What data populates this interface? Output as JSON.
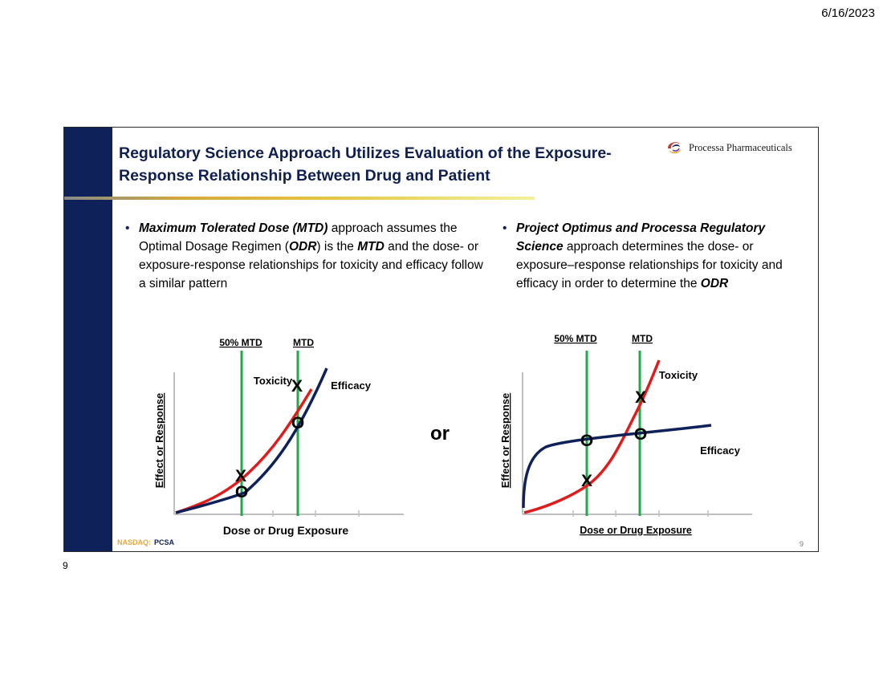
{
  "print": {
    "date": "6/16/2023",
    "page_number": "9"
  },
  "slide": {
    "title_line1": "Regulatory Science Approach Utilizes Evaluation of the Exposure-",
    "title_line2": "Response Relationship Between Drug and Patient",
    "logo_text": "Processa Pharmaceuticals",
    "bullet_left": {
      "t1": "Maximum Tolerated Dose (MTD)",
      "t2": " approach assumes the Optimal Dosage Regimen (",
      "t3": "ODR",
      "t4": ") is the ",
      "t5": "MTD",
      "t6": " and the dose- or exposure-response relationships for toxicity and efficacy follow a similar pattern"
    },
    "bullet_right": {
      "t1": "Project Optimus and Processa Regulatory Science",
      "t2": " approach determines the dose- or exposure–response relationships for toxicity and efficacy in order to determine the ",
      "t3": "ODR"
    },
    "or_text": "or",
    "footer_nasdaq": "NASDAQ:",
    "footer_ticker": "PCSA",
    "slide_number": "9"
  },
  "colors": {
    "navy": "#0f2159",
    "toxicity_red": "#e01b1b",
    "efficacy_navy": "#0f2159",
    "mtd_green": "#21a84a",
    "nasdaq_gold": "#e8a93a"
  },
  "chart_data": [
    {
      "type": "line",
      "xlabel": "Dose or Drug Exposure",
      "ylabel": "Effect or Response",
      "vertical_lines": [
        "50% MTD",
        "MTD"
      ],
      "series": [
        {
          "name": "Toxicity",
          "label": "Toxicity"
        },
        {
          "name": "Efficacy",
          "label": "Efficacy"
        }
      ],
      "markers": [
        {
          "symbol": "X",
          "at": "Toxicity at 50% MTD"
        },
        {
          "symbol": "O",
          "at": "Efficacy at 50% MTD"
        },
        {
          "symbol": "X",
          "at": "Toxicity at MTD"
        },
        {
          "symbol": "O",
          "at": "Efficacy at MTD"
        }
      ]
    },
    {
      "type": "line",
      "xlabel": "Dose or Drug Exposure",
      "ylabel": "Effect or Response",
      "vertical_lines": [
        "50% MTD",
        "MTD"
      ],
      "series": [
        {
          "name": "Toxicity",
          "label": "Toxicity"
        },
        {
          "name": "Efficacy",
          "label": "Efficacy"
        }
      ],
      "markers": [
        {
          "symbol": "O",
          "at": "Efficacy at 50% MTD"
        },
        {
          "symbol": "X",
          "at": "Toxicity at 50% MTD"
        },
        {
          "symbol": "O",
          "at": "Efficacy at MTD"
        },
        {
          "symbol": "X",
          "at": "Toxicity at MTD"
        }
      ]
    }
  ]
}
